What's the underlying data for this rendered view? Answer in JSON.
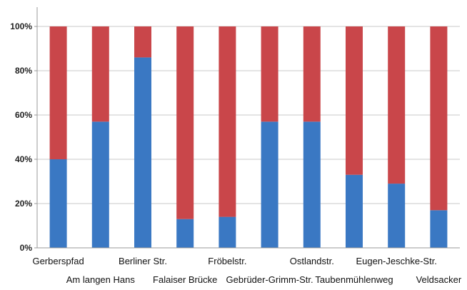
{
  "chart_data": {
    "type": "bar",
    "stacked": true,
    "percent": true,
    "categories": [
      "Gerberspfad",
      "Am langen Hans",
      "Berliner Str.",
      "Falaiser Brücke",
      "Fröbelstr.",
      "Gebrüder-Grimm-Str.",
      "Ostlandstr.",
      "Taubenmühlenweg",
      "Eugen-Jeschke-Str.",
      "Veldsacker"
    ],
    "series": [
      {
        "values": [
          40,
          57,
          86,
          13,
          14,
          57,
          57,
          33,
          29,
          17
        ],
        "color": "#3a78c3"
      },
      {
        "values": [
          60,
          43,
          14,
          87,
          86,
          43,
          43,
          67,
          71,
          83
        ],
        "color": "#c9464a"
      }
    ],
    "ylim": [
      0,
      100
    ],
    "yticks": [
      "0%",
      "20%",
      "40%",
      "60%",
      "80%",
      "100%"
    ],
    "grid": true,
    "legend": "none"
  }
}
